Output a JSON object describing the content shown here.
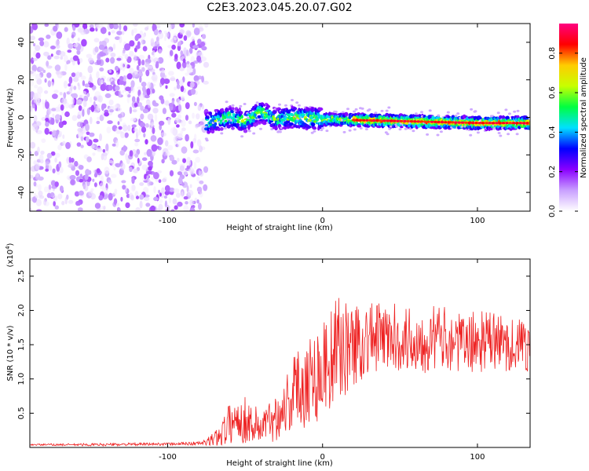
{
  "figure_title": "C2E3.2023.045.20.07.G02",
  "chart_data": [
    {
      "type": "heatmap",
      "xlabel": "Height of straight line (km)",
      "ylabel": "Frequency (Hz)",
      "xlim": [
        -189,
        134
      ],
      "ylim": [
        -50,
        50
      ],
      "xticks": [
        "-100",
        "0",
        "100"
      ],
      "xtick_values": [
        -100,
        0,
        100
      ],
      "yticks": [
        "-40",
        "-20",
        "0",
        "20",
        "40"
      ],
      "ytick_values": [
        -40,
        -20,
        0,
        20,
        40
      ],
      "noise_region_x": [
        -189,
        -75
      ],
      "signal": {
        "center_freq_points": [
          [
            -75,
            -3
          ],
          [
            -60,
            0
          ],
          [
            -50,
            -2
          ],
          [
            -40,
            3
          ],
          [
            -30,
            -1
          ],
          [
            -20,
            0
          ],
          [
            0,
            -1
          ],
          [
            50,
            -2
          ],
          [
            100,
            -3
          ],
          [
            134,
            -3
          ]
        ],
        "peak_amplitude_start_x": 20
      },
      "colorbar": {
        "label": "Normalized spectral amplitude",
        "range": [
          0.0,
          0.95
        ],
        "ticks": [
          "0.0",
          "0.2",
          "0.4",
          "0.6",
          "0.8"
        ],
        "tick_values": [
          0.0,
          0.2,
          0.4,
          0.6,
          0.8
        ],
        "colors": [
          "#ffffff",
          "#c9a0ff",
          "#8a00ff",
          "#0000ff",
          "#00e0ff",
          "#00ff40",
          "#c8ff00",
          "#ffcc00",
          "#ff0000",
          "#ff0080"
        ]
      }
    },
    {
      "type": "line",
      "xlabel": "Height of straight line (km)",
      "ylabel": "SNR (10 * v/v)",
      "ymultiplier_base": "(x10",
      "ymultiplier_exp": "4",
      "ymultiplier_close": ")",
      "xlim": [
        -189,
        134
      ],
      "ylim": [
        0,
        2.75
      ],
      "xticks": [
        "-100",
        "0",
        "100"
      ],
      "xtick_values": [
        -100,
        0,
        100
      ],
      "yticks": [
        "0.5",
        "1.0",
        "1.5",
        "2.0",
        "2.5"
      ],
      "ytick_values": [
        0.5,
        1.0,
        1.5,
        2.0,
        2.5
      ],
      "series": [
        {
          "color": "#ee2222",
          "x": [
            -189,
            -150,
            -100,
            -80,
            -75,
            -70,
            -65,
            -60,
            -55,
            -50,
            -45,
            -40,
            -35,
            -30,
            -25,
            -20,
            -15,
            -10,
            -5,
            0,
            5,
            10,
            15,
            20,
            25,
            30,
            40,
            50,
            60,
            70,
            80,
            90,
            100,
            110,
            120,
            134
          ],
          "y": [
            0.04,
            0.04,
            0.05,
            0.06,
            0.07,
            0.12,
            0.22,
            0.35,
            0.42,
            0.4,
            0.35,
            0.3,
            0.36,
            0.45,
            0.6,
            0.75,
            0.9,
            1.0,
            1.05,
            1.15,
            1.3,
            1.45,
            1.45,
            1.5,
            1.55,
            1.6,
            1.6,
            1.6,
            1.55,
            1.6,
            1.6,
            1.5,
            1.55,
            1.55,
            1.5,
            1.5
          ],
          "spread": [
            0.01,
            0.02,
            0.02,
            0.03,
            0.05,
            0.12,
            0.2,
            0.3,
            0.35,
            0.35,
            0.3,
            0.28,
            0.3,
            0.35,
            0.45,
            0.55,
            0.65,
            0.7,
            0.72,
            0.75,
            0.75,
            0.75,
            0.7,
            0.65,
            0.6,
            0.55,
            0.5,
            0.5,
            0.5,
            0.5,
            0.45,
            0.45,
            0.45,
            0.45,
            0.4,
            0.4
          ]
        }
      ]
    }
  ]
}
